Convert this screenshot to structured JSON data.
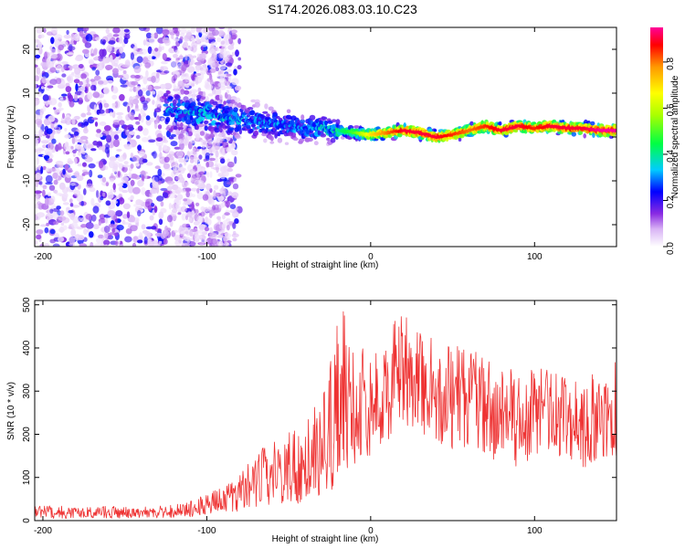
{
  "title": "S174.2026.083.03.10.C23",
  "colors": {
    "snr_line": "#ee3333",
    "spectrogram_low": "#8f2ae0",
    "frame": "#000000"
  },
  "chart_data": [
    {
      "type": "heatmap",
      "xlabel": "Height of straight line (km)",
      "ylabel": "Frequency (Hz)",
      "xlim": [
        -205,
        150
      ],
      "ylim": [
        -25,
        25
      ],
      "x_ticks": [
        -200,
        -100,
        0,
        100
      ],
      "y_ticks": [
        -20,
        -10,
        0,
        10,
        20
      ],
      "colorbar": {
        "label": "Normalized spectral amplitude",
        "range": [
          0,
          0.95
        ],
        "ticks": [
          0.0,
          0.2,
          0.4,
          0.6,
          0.8
        ]
      },
      "ridge": {
        "x": [
          -120,
          -100,
          -80,
          -60,
          -40,
          -30,
          -20,
          -10,
          0,
          10,
          20,
          30,
          40,
          50,
          60,
          70,
          80,
          90,
          100,
          110,
          120,
          130,
          140,
          150
        ],
        "y": [
          6,
          5,
          4,
          3,
          2,
          2,
          1.5,
          1,
          0.5,
          1,
          1.5,
          1,
          0,
          0.5,
          1.5,
          2.5,
          1.5,
          2.5,
          2,
          2.5,
          2,
          2,
          1.5,
          1.5
        ],
        "peak_amplitude": [
          0.3,
          0.35,
          0.3,
          0.3,
          0.3,
          0.35,
          0.4,
          0.5,
          0.7,
          0.8,
          0.9,
          0.9,
          0.9,
          0.85,
          0.8,
          0.85,
          0.9,
          0.9,
          0.85,
          0.9,
          0.9,
          0.9,
          0.95,
          0.95
        ]
      }
    },
    {
      "type": "line",
      "xlabel": "Height of straight line (km)",
      "ylabel": "SNR (10 * v/v)",
      "xlim": [
        -205,
        150
      ],
      "ylim": [
        0,
        510
      ],
      "x_ticks": [
        -200,
        -100,
        0,
        100
      ],
      "y_ticks": [
        0,
        100,
        200,
        300,
        400,
        500
      ],
      "series": [
        {
          "x": [
            -205,
            -190,
            -175,
            -160,
            -145,
            -130,
            -115,
            -105,
            -95,
            -85,
            -80,
            -75,
            -70,
            -65,
            -60,
            -55,
            -50,
            -45,
            -40,
            -35,
            -30,
            -25,
            -20,
            -15,
            -10,
            -5,
            0,
            5,
            10,
            15,
            20,
            25,
            30,
            35,
            40,
            45,
            50,
            55,
            60,
            65,
            70,
            75,
            80,
            85,
            90,
            95,
            100,
            105,
            110,
            115,
            120,
            125,
            130,
            135,
            140,
            145,
            150
          ],
          "y": [
            18,
            20,
            18,
            20,
            18,
            20,
            22,
            30,
            40,
            55,
            70,
            80,
            95,
            90,
            110,
            100,
            120,
            110,
            130,
            140,
            150,
            120,
            220,
            240,
            220,
            230,
            250,
            270,
            290,
            330,
            330,
            340,
            320,
            330,
            310,
            300,
            300,
            320,
            280,
            300,
            270,
            270,
            280,
            260,
            250,
            260,
            270,
            250,
            260,
            240,
            240,
            260,
            230,
            250,
            250,
            240,
            230
          ],
          "low": [
            5,
            5,
            5,
            5,
            5,
            5,
            8,
            10,
            15,
            20,
            20,
            25,
            30,
            30,
            35,
            40,
            40,
            35,
            45,
            50,
            60,
            50,
            100,
            120,
            130,
            140,
            150,
            170,
            180,
            200,
            210,
            220,
            190,
            200,
            180,
            170,
            160,
            180,
            150,
            160,
            140,
            140,
            150,
            130,
            120,
            130,
            150,
            130,
            140,
            120,
            120,
            140,
            110,
            130,
            150,
            140,
            130
          ],
          "high": [
            35,
            35,
            30,
            35,
            30,
            35,
            40,
            55,
            70,
            90,
            110,
            130,
            160,
            170,
            190,
            190,
            230,
            200,
            260,
            270,
            280,
            350,
            510,
            480,
            380,
            400,
            390,
            420,
            430,
            470,
            480,
            460,
            440,
            430,
            420,
            410,
            410,
            430,
            380,
            410,
            370,
            380,
            400,
            360,
            350,
            370,
            380,
            350,
            370,
            340,
            340,
            370,
            320,
            340,
            330,
            330,
            390
          ]
        }
      ]
    }
  ]
}
